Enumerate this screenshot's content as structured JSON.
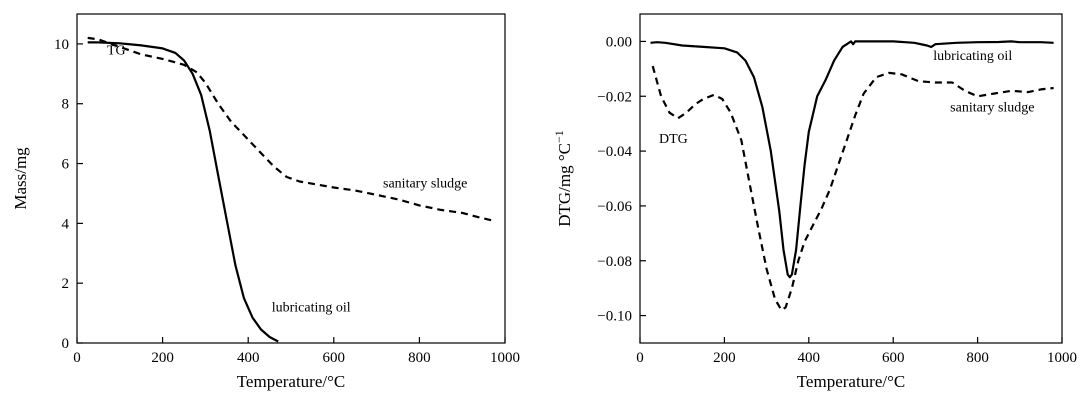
{
  "chart_data": [
    {
      "type": "line",
      "xlabel": "Temperature/°C",
      "ylabel": "Mass/mg",
      "xlim": [
        0,
        1000
      ],
      "ylim": [
        0,
        11
      ],
      "xticks": [
        0,
        200,
        400,
        600,
        800,
        1000
      ],
      "yticks": [
        0,
        2,
        4,
        6,
        8,
        10
      ],
      "grid": false,
      "annotations": [
        {
          "text": "TG",
          "x": 70,
          "y": 9.65
        },
        {
          "text": "sanitary sludge",
          "x": 715,
          "y": 5.2
        },
        {
          "text": "lubricating oil",
          "x": 455,
          "y": 1.05
        }
      ],
      "series": [
        {
          "name": "lubricating oil",
          "style": "solid",
          "x": [
            25,
            50,
            100,
            150,
            200,
            230,
            250,
            270,
            290,
            310,
            330,
            350,
            370,
            390,
            410,
            430,
            450,
            470
          ],
          "y": [
            10.05,
            10.05,
            10.02,
            9.95,
            9.85,
            9.7,
            9.45,
            9.0,
            8.3,
            7.1,
            5.6,
            4.1,
            2.6,
            1.5,
            0.85,
            0.45,
            0.2,
            0.05
          ]
        },
        {
          "name": "sanitary sludge",
          "style": "dashed",
          "x": [
            25,
            50,
            100,
            150,
            200,
            250,
            280,
            300,
            330,
            360,
            400,
            430,
            460,
            490,
            520,
            560,
            600,
            650,
            700,
            750,
            800,
            850,
            900,
            940,
            970
          ],
          "y": [
            10.2,
            10.15,
            9.9,
            9.65,
            9.5,
            9.3,
            9.05,
            8.7,
            8.0,
            7.4,
            6.8,
            6.35,
            5.9,
            5.55,
            5.4,
            5.3,
            5.2,
            5.1,
            4.95,
            4.8,
            4.6,
            4.45,
            4.35,
            4.2,
            4.1
          ]
        }
      ]
    },
    {
      "type": "line",
      "xlabel": "Temperature/°C",
      "ylabel": "DTG/mg °C",
      "ylabel_sup": "−1",
      "xlim": [
        0,
        1000
      ],
      "ylim": [
        -0.11,
        0.01
      ],
      "xticks": [
        0,
        200,
        400,
        600,
        800,
        1000
      ],
      "yticks": [
        0.0,
        -0.02,
        -0.04,
        -0.06,
        -0.08,
        -0.1
      ],
      "ytick_labels": [
        "0.00",
        "−0.02",
        "−0.04",
        "−0.06",
        "−0.08",
        "−0.10"
      ],
      "grid": false,
      "annotations": [
        {
          "text": "DTG",
          "x": 45,
          "y": -0.037
        },
        {
          "text": "lubricating oil",
          "x": 695,
          "y": -0.0068
        },
        {
          "text": "sanitary sludge",
          "x": 735,
          "y": -0.0255
        }
      ],
      "series": [
        {
          "name": "lubricating oil",
          "style": "solid",
          "x": [
            25,
            40,
            60,
            100,
            150,
            200,
            230,
            250,
            270,
            290,
            310,
            330,
            340,
            350,
            355,
            360,
            370,
            380,
            390,
            400,
            420,
            440,
            460,
            480,
            500,
            505,
            510,
            520,
            600,
            650,
            680,
            690,
            700,
            750,
            800,
            850,
            880,
            900,
            950,
            980
          ],
          "y": [
            -0.0005,
            -0.0003,
            -0.0005,
            -0.0015,
            -0.002,
            -0.0025,
            -0.004,
            -0.007,
            -0.013,
            -0.024,
            -0.04,
            -0.062,
            -0.076,
            -0.085,
            -0.086,
            -0.085,
            -0.076,
            -0.06,
            -0.045,
            -0.033,
            -0.02,
            -0.014,
            -0.007,
            -0.002,
            0.0,
            -0.001,
            0.0,
            0.0,
            0.0,
            -0.0005,
            -0.0015,
            -0.002,
            -0.001,
            -0.0005,
            -0.0003,
            -0.0002,
            0.0,
            -0.0003,
            -0.0003,
            -0.0005
          ]
        },
        {
          "name": "sanitary sludge",
          "style": "dashed",
          "x": [
            30,
            50,
            70,
            90,
            110,
            130,
            150,
            175,
            195,
            215,
            240,
            260,
            280,
            300,
            320,
            335,
            345,
            360,
            375,
            390,
            410,
            430,
            450,
            470,
            490,
            510,
            530,
            560,
            590,
            620,
            660,
            700,
            740,
            770,
            800,
            840,
            880,
            920,
            950,
            980
          ],
          "y": [
            -0.009,
            -0.02,
            -0.026,
            -0.028,
            -0.026,
            -0.023,
            -0.021,
            -0.0195,
            -0.021,
            -0.026,
            -0.036,
            -0.052,
            -0.068,
            -0.083,
            -0.094,
            -0.098,
            -0.097,
            -0.09,
            -0.08,
            -0.073,
            -0.067,
            -0.061,
            -0.054,
            -0.045,
            -0.036,
            -0.027,
            -0.019,
            -0.013,
            -0.0115,
            -0.012,
            -0.0145,
            -0.015,
            -0.015,
            -0.018,
            -0.02,
            -0.019,
            -0.018,
            -0.0185,
            -0.0175,
            -0.017
          ]
        }
      ]
    }
  ]
}
